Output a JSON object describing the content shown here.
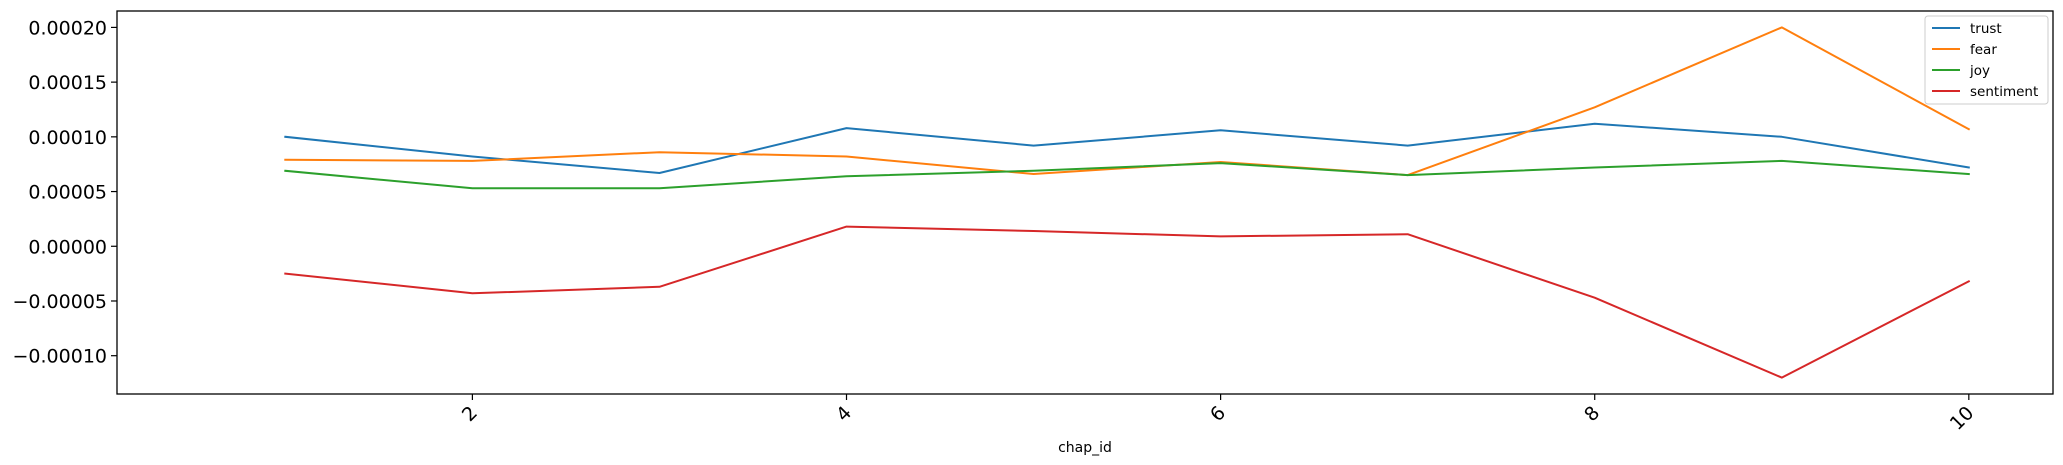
{
  "chart_data": {
    "type": "line",
    "title": "",
    "xlabel": "chap_id",
    "ylabel": "",
    "x": [
      1,
      2,
      3,
      4,
      5,
      6,
      7,
      8,
      9,
      10
    ],
    "xlim": [
      0.1,
      10.45
    ],
    "ylim": [
      -0.000135,
      0.000215
    ],
    "x_ticks": [
      2,
      4,
      6,
      8,
      10
    ],
    "x_tick_labels": [
      "2",
      "4",
      "6",
      "8",
      "10"
    ],
    "x_tick_rotation": 45,
    "y_ticks": [
      -0.0001,
      -5e-05,
      0,
      5e-05,
      0.0001,
      0.00015,
      0.0002
    ],
    "y_tick_labels": [
      "−0.00010",
      "−0.00005",
      "0.00000",
      "0.00005",
      "0.00010",
      "0.00015",
      "0.00020"
    ],
    "grid": false,
    "legend_position": "top-right",
    "series": [
      {
        "name": "trust",
        "color": "#1f77b4",
        "values": [
          0.0001,
          8.2e-05,
          6.7e-05,
          0.000108,
          9.2e-05,
          0.000106,
          9.2e-05,
          0.000112,
          0.0001,
          7.2e-05
        ]
      },
      {
        "name": "fear",
        "color": "#ff7f0e",
        "values": [
          7.9e-05,
          7.8e-05,
          8.6e-05,
          8.2e-05,
          6.6e-05,
          7.7e-05,
          6.5e-05,
          0.000127,
          0.0002,
          0.000107
        ]
      },
      {
        "name": "joy",
        "color": "#2ca02c",
        "values": [
          6.9e-05,
          5.3e-05,
          5.3e-05,
          6.4e-05,
          6.9e-05,
          7.6e-05,
          6.5e-05,
          7.2e-05,
          7.8e-05,
          6.6e-05
        ]
      },
      {
        "name": "sentiment",
        "color": "#d62728",
        "values": [
          -2.5e-05,
          -4.3e-05,
          -3.7e-05,
          1.8e-05,
          1.4e-05,
          9e-06,
          1.1e-05,
          -4.7e-05,
          -0.00012,
          -3.2e-05
        ]
      }
    ]
  }
}
